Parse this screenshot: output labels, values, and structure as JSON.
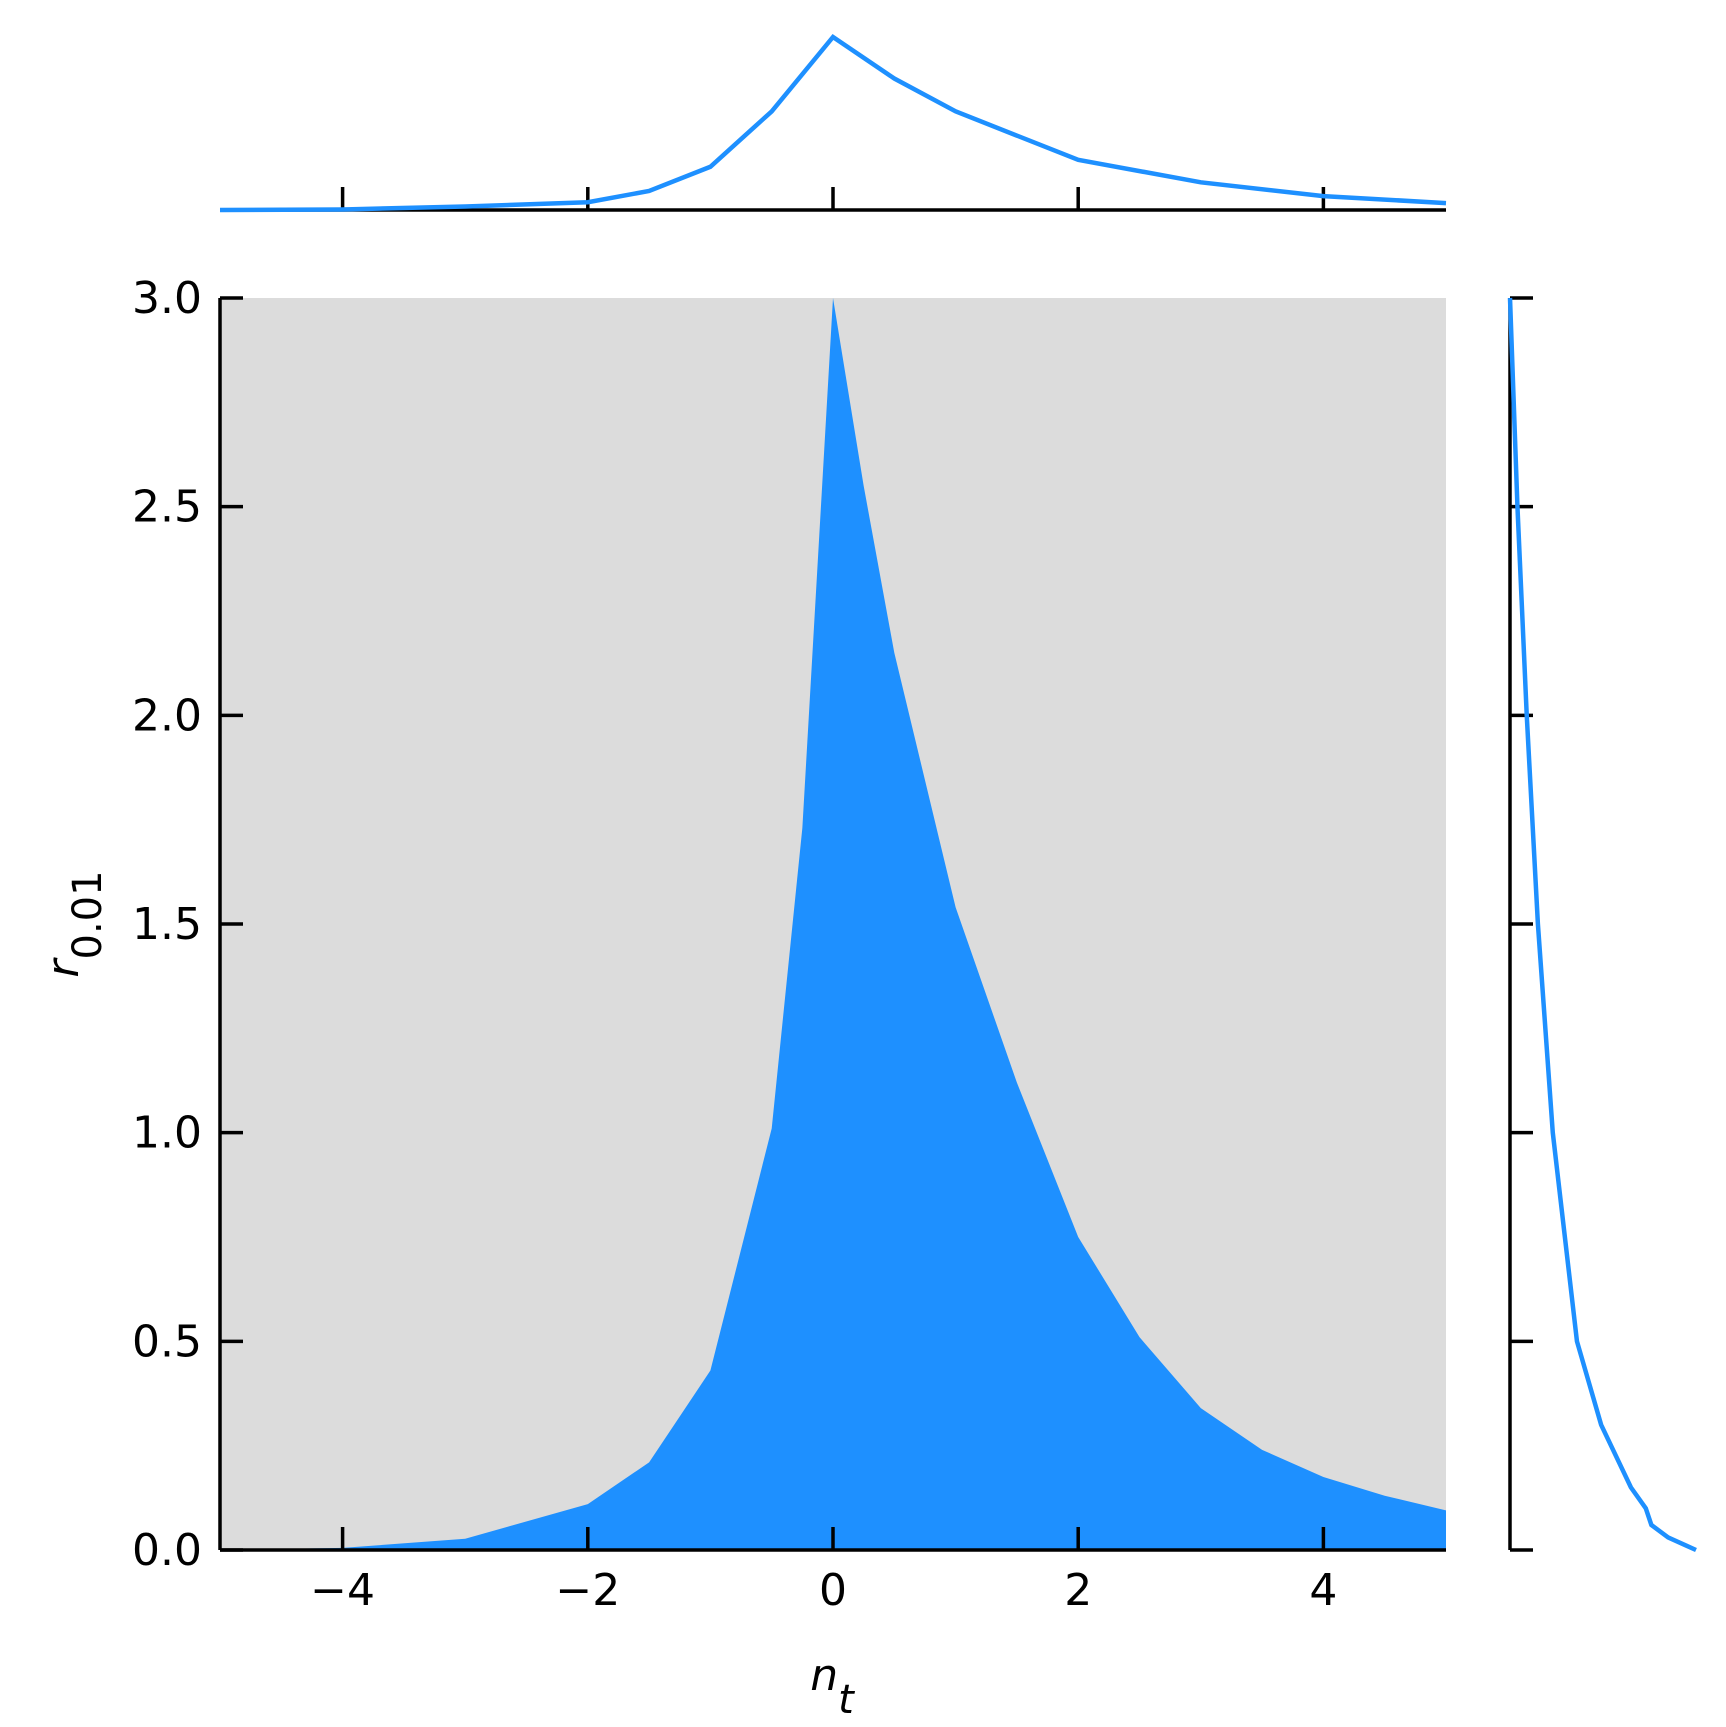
{
  "chart_data": [
    {
      "type": "area",
      "color": "#1e90ff",
      "background": "#dcdcdc",
      "xlabel": {
        "base": "n",
        "sub": "t"
      },
      "ylabel": {
        "base": "r",
        "sub": "0.01"
      },
      "x": [
        -5,
        -4,
        -3,
        -2,
        -1.5,
        -1,
        -0.5,
        -0.25,
        0,
        0.25,
        0.5,
        1,
        1.5,
        2,
        2.5,
        3,
        3.5,
        4,
        4.5,
        5
      ],
      "values": [
        0,
        0.005,
        0.027,
        0.11,
        0.21,
        0.43,
        1.01,
        1.73,
        3.0,
        2.55,
        2.15,
        1.54,
        1.12,
        0.75,
        0.51,
        0.34,
        0.24,
        0.175,
        0.13,
        0.095
      ],
      "xlim": [
        -5,
        5
      ],
      "ylim": [
        0,
        3
      ],
      "xticks": [
        {
          "value": -4,
          "label": "−4"
        },
        {
          "value": -2,
          "label": "−2"
        },
        0,
        2,
        4
      ],
      "yticks": [
        {
          "value": 0,
          "label": "0.0"
        },
        {
          "value": 0.5,
          "label": "0.5"
        },
        {
          "value": 1,
          "label": "1.0"
        },
        {
          "value": 1.5,
          "label": "1.5"
        },
        {
          "value": 2,
          "label": "2.0"
        },
        {
          "value": 2.5,
          "label": "2.5"
        },
        {
          "value": 3,
          "label": "3.0"
        }
      ]
    },
    {
      "type": "line",
      "color": "#1e90ff",
      "x": [
        -5,
        -4,
        -3,
        -2,
        -1.5,
        -1,
        -0.5,
        0,
        0.5,
        1,
        2,
        3,
        4,
        5
      ],
      "values": [
        0,
        0.003,
        0.02,
        0.045,
        0.11,
        0.25,
        0.57,
        1.0,
        0.76,
        0.57,
        0.29,
        0.16,
        0.08,
        0.04
      ],
      "xlim": [
        -5,
        5
      ],
      "ylim": [
        0,
        1
      ],
      "xticks": [
        -4,
        -2,
        0,
        2,
        4
      ]
    },
    {
      "type": "hline",
      "color": "#1e90ff",
      "y": [
        3,
        2.5,
        2,
        1.5,
        1,
        0.5,
        0.3,
        0.15,
        0.1,
        0.06,
        0.03,
        0.01,
        0
      ],
      "values": [
        0,
        0.04,
        0.09,
        0.15,
        0.23,
        0.36,
        0.49,
        0.65,
        0.73,
        0.76,
        0.85,
        0.95,
        1.0
      ],
      "xlim": [
        0,
        1
      ],
      "ylim": [
        0,
        3
      ],
      "yticks": [
        0,
        0.5,
        1,
        1.5,
        2,
        2.5,
        3
      ]
    }
  ]
}
